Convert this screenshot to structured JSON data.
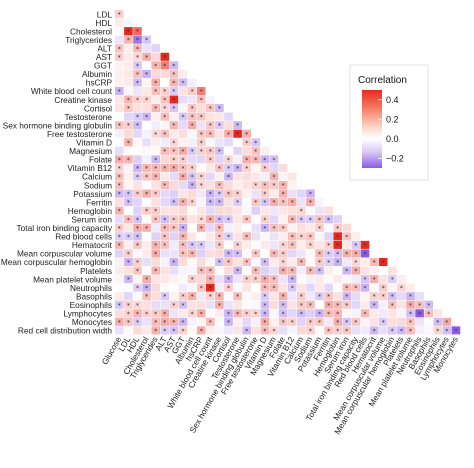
{
  "chart_data": {
    "type": "heatmap",
    "variables": [
      "Glucose",
      "LDL",
      "HDL",
      "Cholesterol",
      "Triglycerides",
      "ALT",
      "AST",
      "GGT",
      "Albumin",
      "hsCRP",
      "White blood cell count",
      "Creatine kinase",
      "Cortisol",
      "Testosterone",
      "Sex hormone binding globulin",
      "Free testosterone",
      "Vitamin D",
      "Magnesium",
      "Folate",
      "Vitamin B12",
      "Calcium",
      "Sodium",
      "Potassium",
      "Ferritin",
      "Hemoglobin",
      "Serum iron",
      "Total iron binding capacity",
      "Red blood cells",
      "Hematocrit",
      "Mean corpuscular volume",
      "Mean corpuscular hemoglobin",
      "Platelets",
      "Mean platelet volume",
      "Neutrophils",
      "Basophils",
      "Eosinophils",
      "Lymphocytes",
      "Monocytes",
      "Red cell distribution width"
    ],
    "row_labels": [
      "LDL",
      "HDL",
      "Cholesterol",
      "Triglycerides",
      "ALT",
      "AST",
      "GGT",
      "Albumin",
      "hsCRP",
      "White blood cell count",
      "Creatine kinase",
      "Cortisol",
      "Testosterone",
      "Sex hormone binding globulin",
      "Free testosterone",
      "Vitamin D",
      "Magnesium",
      "Folate",
      "Vitamin B12",
      "Calcium",
      "Sodium",
      "Potassium",
      "Ferritin",
      "Hemoglobin",
      "Serum iron",
      "Total iron binding capacity",
      "Red blood cells",
      "Hematocrit",
      "Mean corpuscular volume",
      "Mean corpuscular hemoglobin",
      "Platelets",
      "Mean platelet volume",
      "Neutrophils",
      "Basophils",
      "Eosinophils",
      "Lymphocytes",
      "Monocytes",
      "Red cell distribution width"
    ],
    "column_labels": [
      "Glucose",
      "LDL",
      "HDL",
      "Cholesterol",
      "Triglycerides",
      "ALT",
      "AST",
      "GGT",
      "Albumin",
      "hsCRP",
      "White blood cell count",
      "Creatine kinase",
      "Cortisol",
      "Testosterone",
      "Sex hormone binding globulin",
      "Free testosterone",
      "Vitamin D",
      "Magnesium",
      "Folate",
      "Vitamin B12",
      "Calcium",
      "Sodium",
      "Potassium",
      "Ferritin",
      "Hemoglobin",
      "Serum iron",
      "Total iron binding capacity",
      "Red blood cells",
      "Hematocrit",
      "Mean corpuscular volume",
      "Mean corpuscular hemoglobin",
      "Platelets",
      "Mean platelet volume",
      "Neutrophils",
      "Basophils",
      "Eosinophils",
      "Lymphocytes",
      "Monocytes"
    ],
    "legend": {
      "title": "Correlation",
      "ticks": [
        0.4,
        0.2,
        0.0,
        -0.2
      ],
      "tick_labels": [
        "0.4",
        "0.2",
        "0.0",
        "−0.2"
      ],
      "range": [
        -0.3,
        0.5
      ],
      "colors": {
        "high": "#e8281e",
        "mid": "#ffffff",
        "low": "#8a5ce6"
      }
    },
    "layout": "lower-triangle",
    "significance_marker": "*",
    "strong_cells": [
      {
        "row": "Cholesterol",
        "col": "LDL",
        "value": 0.6
      },
      {
        "row": "Cholesterol",
        "col": "HDL",
        "value": 0.35
      },
      {
        "row": "Triglycerides",
        "col": "HDL",
        "value": -0.25
      },
      {
        "row": "AST",
        "col": "ALT",
        "value": 0.55
      },
      {
        "row": "GGT",
        "col": "ALT",
        "value": 0.3
      },
      {
        "row": "Creatine kinase",
        "col": "AST",
        "value": 0.55
      },
      {
        "row": "White blood cell count",
        "col": "hsCRP",
        "value": 0.3
      },
      {
        "row": "Free testosterone",
        "col": "Testosterone",
        "value": 0.55
      },
      {
        "row": "Red blood cells",
        "col": "Hemoglobin",
        "value": 0.55
      },
      {
        "row": "Hematocrit",
        "col": "Hemoglobin",
        "value": 0.65
      },
      {
        "row": "Hematocrit",
        "col": "Red blood cells",
        "value": 0.6
      },
      {
        "row": "Mean corpuscular hemoglobin",
        "col": "Mean corpuscular volume",
        "value": 0.5
      },
      {
        "row": "Mean corpuscular volume",
        "col": "Red blood cells",
        "value": -0.3
      },
      {
        "row": "Neutrophils",
        "col": "White blood cell count",
        "value": 0.55
      },
      {
        "row": "Lymphocytes",
        "col": "Neutrophils",
        "value": -0.3
      },
      {
        "row": "Monocytes",
        "col": "Lymphocytes",
        "value": 0.2
      },
      {
        "row": "Red cell distribution width",
        "col": "Monocytes",
        "value": -0.3
      }
    ]
  }
}
